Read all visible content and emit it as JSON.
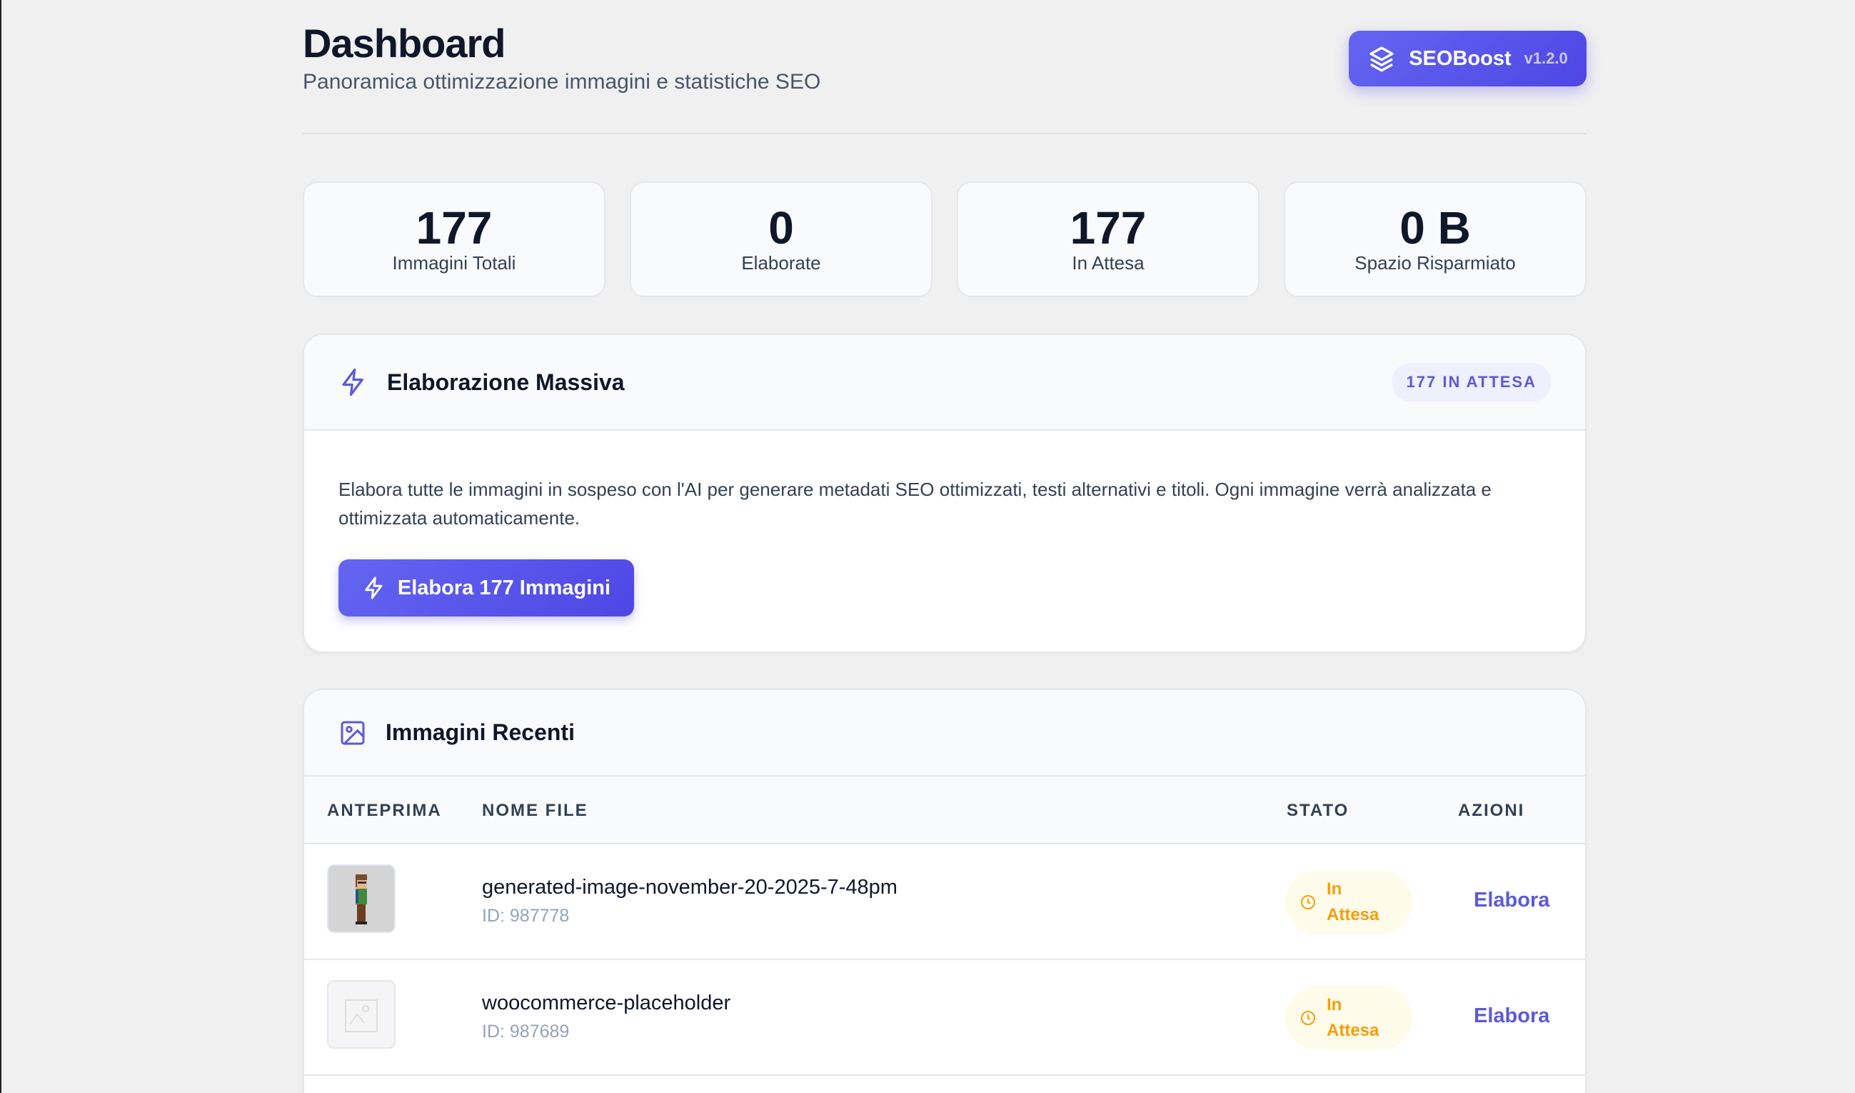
{
  "header": {
    "title": "Dashboard",
    "subtitle": "Panoramica ottimizzazione immagini e statistiche SEO"
  },
  "brand": {
    "name": "SEOBoost",
    "version": "v1.2.0",
    "icon": "layers-icon",
    "color": "#4f46e5"
  },
  "stats": [
    {
      "value": "177",
      "label": "Immagini Totali"
    },
    {
      "value": "0",
      "label": "Elaborate"
    },
    {
      "value": "177",
      "label": "In Attesa"
    },
    {
      "value": "0 B",
      "label": "Spazio Risparmiato"
    }
  ],
  "bulk": {
    "title": "Elaborazione Massiva",
    "badge": "177 IN ATTESA",
    "icon": "lightning-icon",
    "description": "Elabora tutte le immagini in sospeso con l'AI per generare metadati SEO ottimizzati, testi alternativi e titoli. Ogni immagine verrà analizzata e ottimizzata automaticamente.",
    "button": "Elabora 177 Immagini"
  },
  "recent": {
    "title": "Immagini Recenti",
    "icon": "image-icon",
    "columns": [
      "ANTEPRIMA",
      "NOME FILE",
      "STATO",
      "AZIONI"
    ],
    "rows": [
      {
        "name": "generated-image-november-20-2025-7-48pm",
        "id": "ID: 987778",
        "status_line1": "In",
        "status_line2": "Attesa",
        "action": "Elabora"
      },
      {
        "name": "woocommerce-placeholder",
        "id": "ID: 987689",
        "status_line1": "In",
        "status_line2": "Attesa",
        "action": "Elabora"
      }
    ]
  },
  "colors": {
    "accent": "#5b5bd6",
    "pending": "#f59e0b",
    "pending_bg": "#fffbeb"
  }
}
